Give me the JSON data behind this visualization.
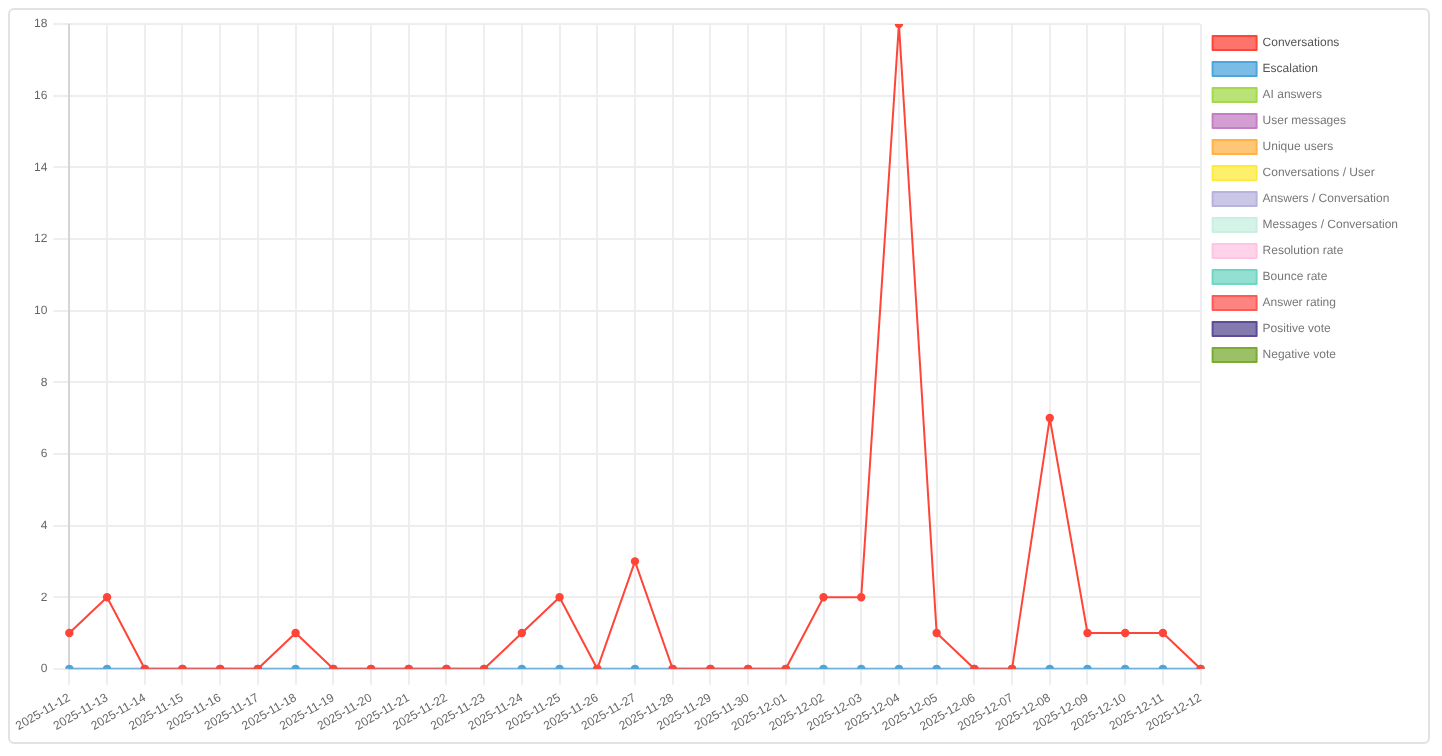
{
  "chart_data": {
    "type": "line",
    "categories": [
      "2025-11-12",
      "2025-11-13",
      "2025-11-14",
      "2025-11-15",
      "2025-11-16",
      "2025-11-17",
      "2025-11-18",
      "2025-11-19",
      "2025-11-20",
      "2025-11-21",
      "2025-11-22",
      "2025-11-23",
      "2025-11-24",
      "2025-11-25",
      "2025-11-26",
      "2025-11-27",
      "2025-11-28",
      "2025-11-29",
      "2025-11-30",
      "2025-12-01",
      "2025-12-02",
      "2025-12-03",
      "2025-12-04",
      "2025-12-05",
      "2025-12-06",
      "2025-12-07",
      "2025-12-08",
      "2025-12-09",
      "2025-12-10",
      "2025-12-11",
      "2025-12-12"
    ],
    "series": [
      {
        "name": "Conversations",
        "color": "#ff4538",
        "values": [
          1,
          2,
          0,
          0,
          0,
          0,
          1,
          0,
          0,
          0,
          0,
          0,
          1,
          2,
          0,
          3,
          0,
          0,
          0,
          0,
          2,
          2,
          18,
          1,
          0,
          0,
          7,
          1,
          1,
          1,
          0
        ]
      },
      {
        "name": "Escalation",
        "color": "#4ea5dc",
        "values": [
          0,
          0,
          0,
          0,
          0,
          0,
          0,
          0,
          0,
          0,
          0,
          0,
          0,
          0,
          0,
          0,
          0,
          0,
          0,
          0,
          0,
          0,
          0,
          0,
          0,
          0,
          0,
          0,
          0,
          0,
          0
        ]
      },
      {
        "name": "AI answers",
        "color": "#a3d94a",
        "values": [
          null,
          null,
          null,
          null,
          null,
          null,
          null,
          null,
          null,
          null,
          null,
          null,
          null,
          null,
          null,
          null,
          null,
          null,
          null,
          null,
          null,
          null,
          null,
          null,
          null,
          null,
          null,
          null,
          null,
          null,
          null
        ]
      },
      {
        "name": "User messages",
        "color": "#c47fc4",
        "values": [
          null,
          null,
          null,
          null,
          null,
          null,
          null,
          null,
          null,
          null,
          null,
          null,
          null,
          null,
          null,
          null,
          null,
          null,
          null,
          null,
          null,
          null,
          null,
          null,
          null,
          null,
          null,
          null,
          null,
          null,
          null
        ]
      },
      {
        "name": "Unique users",
        "color": "#ffb347",
        "values": [
          null,
          null,
          null,
          null,
          null,
          null,
          null,
          null,
          null,
          null,
          null,
          null,
          null,
          null,
          null,
          null,
          null,
          null,
          null,
          null,
          null,
          null,
          null,
          null,
          null,
          null,
          null,
          null,
          null,
          null,
          null
        ]
      },
      {
        "name": "Conversations / User",
        "color": "#ffeb3b",
        "values": [
          null,
          null,
          null,
          null,
          null,
          null,
          null,
          null,
          null,
          null,
          null,
          null,
          null,
          null,
          null,
          null,
          null,
          null,
          null,
          null,
          null,
          null,
          null,
          null,
          null,
          null,
          null,
          null,
          null,
          null,
          null
        ]
      },
      {
        "name": "Answers / Conversation",
        "color": "#b8b3dd",
        "values": [
          null,
          null,
          null,
          null,
          null,
          null,
          null,
          null,
          null,
          null,
          null,
          null,
          null,
          null,
          null,
          null,
          null,
          null,
          null,
          null,
          null,
          null,
          null,
          null,
          null,
          null,
          null,
          null,
          null,
          null,
          null
        ]
      },
      {
        "name": "Messages / Conversation",
        "color": "#c8efe0",
        "values": [
          null,
          null,
          null,
          null,
          null,
          null,
          null,
          null,
          null,
          null,
          null,
          null,
          null,
          null,
          null,
          null,
          null,
          null,
          null,
          null,
          null,
          null,
          null,
          null,
          null,
          null,
          null,
          null,
          null,
          null,
          null
        ]
      },
      {
        "name": "Resolution rate",
        "color": "#ffc4e1",
        "values": [
          null,
          null,
          null,
          null,
          null,
          null,
          null,
          null,
          null,
          null,
          null,
          null,
          null,
          null,
          null,
          null,
          null,
          null,
          null,
          null,
          null,
          null,
          null,
          null,
          null,
          null,
          null,
          null,
          null,
          null,
          null
        ]
      },
      {
        "name": "Bounce rate",
        "color": "#6fd6c4",
        "values": [
          null,
          null,
          null,
          null,
          null,
          null,
          null,
          null,
          null,
          null,
          null,
          null,
          null,
          null,
          null,
          null,
          null,
          null,
          null,
          null,
          null,
          null,
          null,
          null,
          null,
          null,
          null,
          null,
          null,
          null,
          null
        ]
      },
      {
        "name": "Answer rating",
        "color": "#ff5a55",
        "values": [
          null,
          null,
          null,
          null,
          null,
          null,
          null,
          null,
          null,
          null,
          null,
          null,
          null,
          null,
          null,
          null,
          null,
          null,
          null,
          null,
          null,
          null,
          null,
          null,
          null,
          null,
          null,
          null,
          null,
          null,
          null
        ]
      },
      {
        "name": "Positive vote",
        "color": "#5c4d96",
        "values": [
          null,
          null,
          null,
          null,
          null,
          null,
          null,
          null,
          null,
          null,
          null,
          null,
          null,
          null,
          null,
          null,
          null,
          null,
          null,
          null,
          null,
          null,
          null,
          null,
          null,
          null,
          null,
          null,
          null,
          null,
          null
        ]
      },
      {
        "name": "Negative vote",
        "color": "#7aab32",
        "values": [
          null,
          null,
          null,
          null,
          null,
          null,
          null,
          null,
          null,
          null,
          null,
          null,
          null,
          null,
          null,
          null,
          null,
          null,
          null,
          null,
          null,
          null,
          null,
          null,
          null,
          null,
          null,
          null,
          null,
          null,
          null
        ]
      }
    ],
    "ylim": [
      0,
      18
    ],
    "yticks": [
      0,
      2,
      4,
      6,
      8,
      10,
      12,
      14,
      16,
      18
    ],
    "grid": true,
    "legend": "top right",
    "marker": "circle",
    "line_style": "solid"
  }
}
